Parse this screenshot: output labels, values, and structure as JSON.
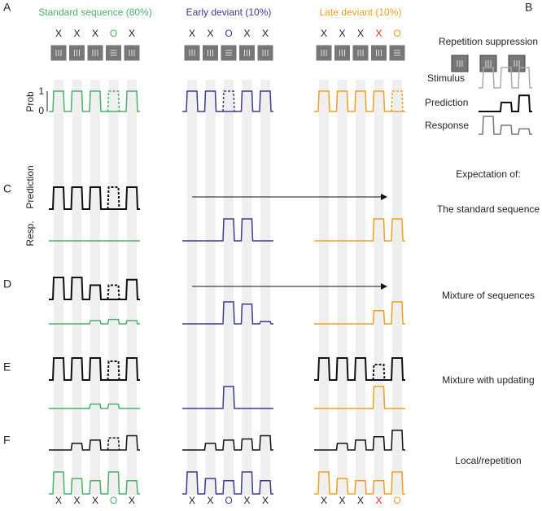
{
  "panel_labels": [
    "A",
    "B",
    "C",
    "D",
    "E",
    "F"
  ],
  "conditions": [
    {
      "title": "Standard sequence (80%)",
      "symbols": [
        "X",
        "X",
        "X",
        "O",
        "X"
      ]
    },
    {
      "title": "Early deviant (10%)",
      "symbols": [
        "X",
        "X",
        "O",
        "X",
        "X"
      ]
    },
    {
      "title": "Late deviant (10%)",
      "symbols": [
        "X",
        "X",
        "X",
        "X",
        "O"
      ]
    }
  ],
  "prob_axis": {
    "label": "Prob",
    "ticks": [
      "1",
      "0"
    ]
  },
  "c_axis": {
    "prediction": "Prediction",
    "response": "Resp."
  },
  "legend": {
    "title": "Repetition suppression",
    "items": [
      "Stimulus",
      "Prediction",
      "Response"
    ]
  },
  "expectation": {
    "title": "Expectation of:",
    "rows": [
      "The standard sequence",
      "Mixture of sequences",
      "Mixture with updating",
      "Local/repetition"
    ]
  }
}
